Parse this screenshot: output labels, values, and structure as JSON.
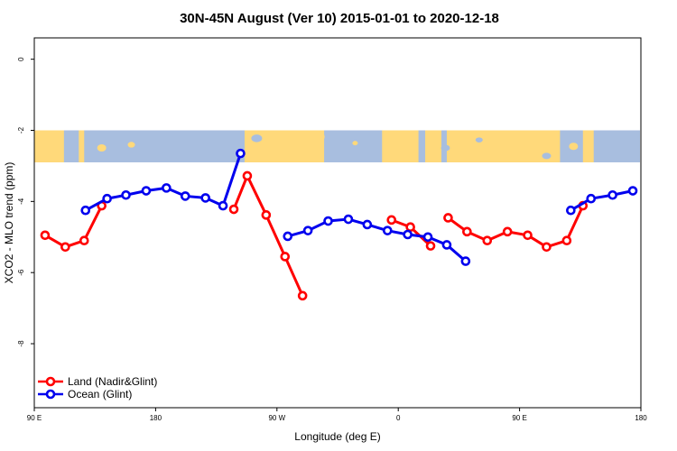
{
  "chart_data": {
    "type": "line",
    "title": "30N-45N August (Ver 10)   2015-01-01 to 2020-12-18",
    "xlabel": "Longitude (deg E)",
    "ylabel": "XCO2 - MLO trend (ppm)",
    "xlim": [
      90,
      540
    ],
    "ylim": [
      -9.8,
      0.6
    ],
    "x_ticks": [
      {
        "value": 90,
        "label": "90 E"
      },
      {
        "value": 180,
        "label": "180"
      },
      {
        "value": 270,
        "label": "90 W"
      },
      {
        "value": 360,
        "label": "0"
      },
      {
        "value": 450,
        "label": "90 E"
      },
      {
        "value": 540,
        "label": "180"
      }
    ],
    "y_ticks": [
      {
        "value": 0,
        "label": "0"
      },
      {
        "value": -2,
        "label": "-2"
      },
      {
        "value": -4,
        "label": "-4"
      },
      {
        "value": -6,
        "label": "-6"
      },
      {
        "value": -8,
        "label": "-8"
      }
    ],
    "map_band": {
      "y_top": -2.0,
      "y_bottom": -2.9,
      "land_color": "#ffd97a",
      "ocean_color": "#a8bedf"
    },
    "legend_position": "bottom-left",
    "series": [
      {
        "name": "Land (Nadir&Glint)",
        "color": "#ff0000",
        "segments": [
          [
            [
              98,
              -4.95
            ],
            [
              113,
              -5.28
            ],
            [
              127,
              -5.1
            ],
            [
              140,
              -4.12
            ]
          ],
          [
            [
              238,
              -4.22
            ],
            [
              248,
              -3.28
            ],
            [
              262,
              -4.38
            ],
            [
              276,
              -5.55
            ],
            [
              289,
              -6.65
            ]
          ],
          [
            [
              355,
              -4.52
            ],
            [
              369,
              -4.72
            ],
            [
              384,
              -5.25
            ]
          ],
          [
            [
              397,
              -4.46
            ],
            [
              411,
              -4.85
            ],
            [
              426,
              -5.1
            ],
            [
              441,
              -4.85
            ],
            [
              456,
              -4.95
            ],
            [
              470,
              -5.28
            ],
            [
              485,
              -5.1
            ],
            [
              497,
              -4.12
            ]
          ]
        ]
      },
      {
        "name": "Ocean (Glint)",
        "color": "#0000ee",
        "segments": [
          [
            [
              128,
              -4.25
            ],
            [
              144,
              -3.92
            ],
            [
              158,
              -3.82
            ],
            [
              173,
              -3.7
            ],
            [
              188,
              -3.62
            ],
            [
              202,
              -3.85
            ],
            [
              217,
              -3.9
            ],
            [
              230,
              -4.12
            ],
            [
              243,
              -2.65
            ]
          ],
          [
            [
              278,
              -4.98
            ],
            [
              293,
              -4.82
            ],
            [
              308,
              -4.55
            ],
            [
              323,
              -4.5
            ],
            [
              337,
              -4.65
            ],
            [
              352,
              -4.82
            ],
            [
              367,
              -4.93
            ],
            [
              382,
              -5.0
            ],
            [
              396,
              -5.22
            ],
            [
              410,
              -5.68
            ]
          ]
        ],
        "segments_right": [
          [
            [
              488,
              -4.25
            ],
            [
              503,
              -3.92
            ],
            [
              519,
              -3.82
            ],
            [
              534,
              -3.7
            ]
          ]
        ]
      }
    ]
  }
}
